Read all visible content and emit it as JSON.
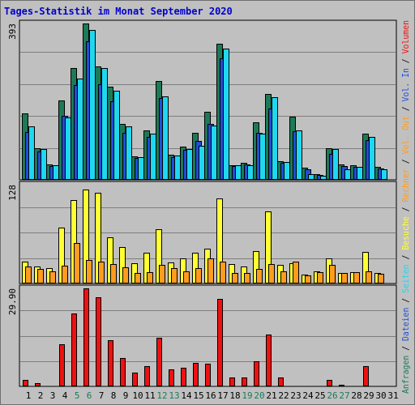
{
  "title": "Tages-Statistik im Monat September 2020",
  "colors": {
    "background": "#c0c0c0",
    "title": "#0000cc",
    "anfragen": "#1d7a57",
    "dateien": "#1f4fd8",
    "seiten": "#1fd8f0",
    "besuche": "#ffff33",
    "rechner": "#ff9c20",
    "volumen": "#ee1111",
    "weekend_day": "#1d7a57",
    "weekday": "#000000"
  },
  "chart_data": [
    {
      "type": "bar",
      "panel": "top",
      "ymax_label": "393",
      "ylim": [
        0,
        393
      ],
      "categories": [
        "1",
        "2",
        "3",
        "4",
        "5",
        "6",
        "7",
        "8",
        "9",
        "10",
        "11",
        "12",
        "13",
        "14",
        "15",
        "16",
        "17",
        "18",
        "19",
        "20",
        "21",
        "22",
        "23",
        "24",
        "25",
        "26",
        "27",
        "28",
        "29",
        "30",
        "31"
      ],
      "weekend_days": [
        "5",
        "6",
        "12",
        "13",
        "19",
        "20",
        "26",
        "27"
      ],
      "series": [
        {
          "name": "Anfragen",
          "color_key": "anfragen",
          "values": [
            166,
            79,
            39,
            200,
            282,
            393,
            285,
            234,
            140,
            60,
            125,
            248,
            63,
            83,
            118,
            172,
            343,
            37,
            43,
            145,
            215,
            47,
            158,
            30,
            15,
            80,
            38,
            36,
            117,
            32,
            0
          ]
        },
        {
          "name": "Dateien",
          "color_key": "dateien",
          "values": [
            120,
            72,
            35,
            160,
            238,
            348,
            240,
            198,
            118,
            54,
            108,
            205,
            58,
            75,
            98,
            140,
            305,
            34,
            38,
            118,
            180,
            42,
            122,
            26,
            12,
            65,
            35,
            32,
            100,
            28,
            0
          ]
        },
        {
          "name": "Seiten",
          "color_key": "seiten",
          "values": [
            134,
            77,
            37,
            156,
            254,
            377,
            282,
            224,
            135,
            57,
            117,
            210,
            61,
            78,
            86,
            137,
            329,
            36,
            37,
            117,
            207,
            45,
            124,
            14,
            11,
            77,
            26,
            33,
            107,
            27,
            0
          ]
        }
      ]
    },
    {
      "type": "bar",
      "panel": "middle",
      "ymax_label": "128",
      "ylim": [
        0,
        128
      ],
      "categories": [
        "1",
        "2",
        "3",
        "4",
        "5",
        "6",
        "7",
        "8",
        "9",
        "10",
        "11",
        "12",
        "13",
        "14",
        "15",
        "16",
        "17",
        "18",
        "19",
        "20",
        "21",
        "22",
        "23",
        "24",
        "25",
        "26",
        "27",
        "28",
        "29",
        "30",
        "31"
      ],
      "series": [
        {
          "name": "Besuche",
          "color_key": "besuche",
          "values": [
            28,
            22,
            20,
            72,
            108,
            122,
            117,
            60,
            47,
            26,
            40,
            70,
            27,
            32,
            40,
            45,
            110,
            25,
            22,
            42,
            93,
            24,
            26,
            12,
            16,
            32,
            14,
            15,
            41,
            14,
            0
          ]
        },
        {
          "name": "Rechner",
          "color_key": "rechner",
          "values": [
            22,
            19,
            16,
            23,
            52,
            30,
            28,
            25,
            21,
            14,
            15,
            24,
            20,
            16,
            20,
            32,
            28,
            14,
            14,
            19,
            25,
            16,
            28,
            10,
            15,
            24,
            14,
            15,
            16,
            13,
            0
          ]
        }
      ]
    },
    {
      "type": "bar",
      "panel": "bottom",
      "ymax_label": "29.90",
      "ylim": [
        0,
        29.9
      ],
      "categories": [
        "1",
        "2",
        "3",
        "4",
        "5",
        "6",
        "7",
        "8",
        "9",
        "10",
        "11",
        "12",
        "13",
        "14",
        "15",
        "16",
        "17",
        "18",
        "19",
        "20",
        "21",
        "22",
        "23",
        "24",
        "25",
        "26",
        "27",
        "28",
        "29",
        "30",
        "31"
      ],
      "series": [
        {
          "name": "Volumen",
          "color_key": "volumen",
          "values": [
            1.9,
            1.1,
            0.3,
            12.8,
            22.3,
            29.9,
            27.1,
            14.1,
            8.6,
            4.3,
            6.1,
            14.8,
            5.2,
            5.8,
            7.1,
            6.8,
            26.8,
            2.6,
            2.6,
            7.7,
            15.9,
            2.6,
            0.3,
            0.3,
            0.3,
            2.1,
            0.5,
            0.3,
            6.3,
            0.3,
            0.0
          ]
        }
      ]
    }
  ],
  "right_legend": [
    {
      "text": "Anfragen",
      "color_key": "anfragen"
    },
    {
      "text": " / ",
      "color_key": "weekday"
    },
    {
      "text": "Dateien",
      "color_key": "dateien"
    },
    {
      "text": " / ",
      "color_key": "weekday"
    },
    {
      "text": "Seiten",
      "color_key": "seiten"
    },
    {
      "text": " / ",
      "color_key": "weekday"
    },
    {
      "text": "Besuche",
      "color_key": "besuche"
    },
    {
      "text": " / ",
      "color_key": "weekday"
    },
    {
      "text": "Rechner",
      "color_key": "rechner"
    },
    {
      "text": " / ",
      "color_key": "weekday"
    },
    {
      "text": "Vol. Out",
      "color_key": "rechner"
    },
    {
      "text": " / ",
      "color_key": "weekday"
    },
    {
      "text": "Vol. In",
      "color_key": "dateien"
    },
    {
      "text": " / ",
      "color_key": "weekday"
    },
    {
      "text": "Volumen",
      "color_key": "volumen"
    }
  ]
}
